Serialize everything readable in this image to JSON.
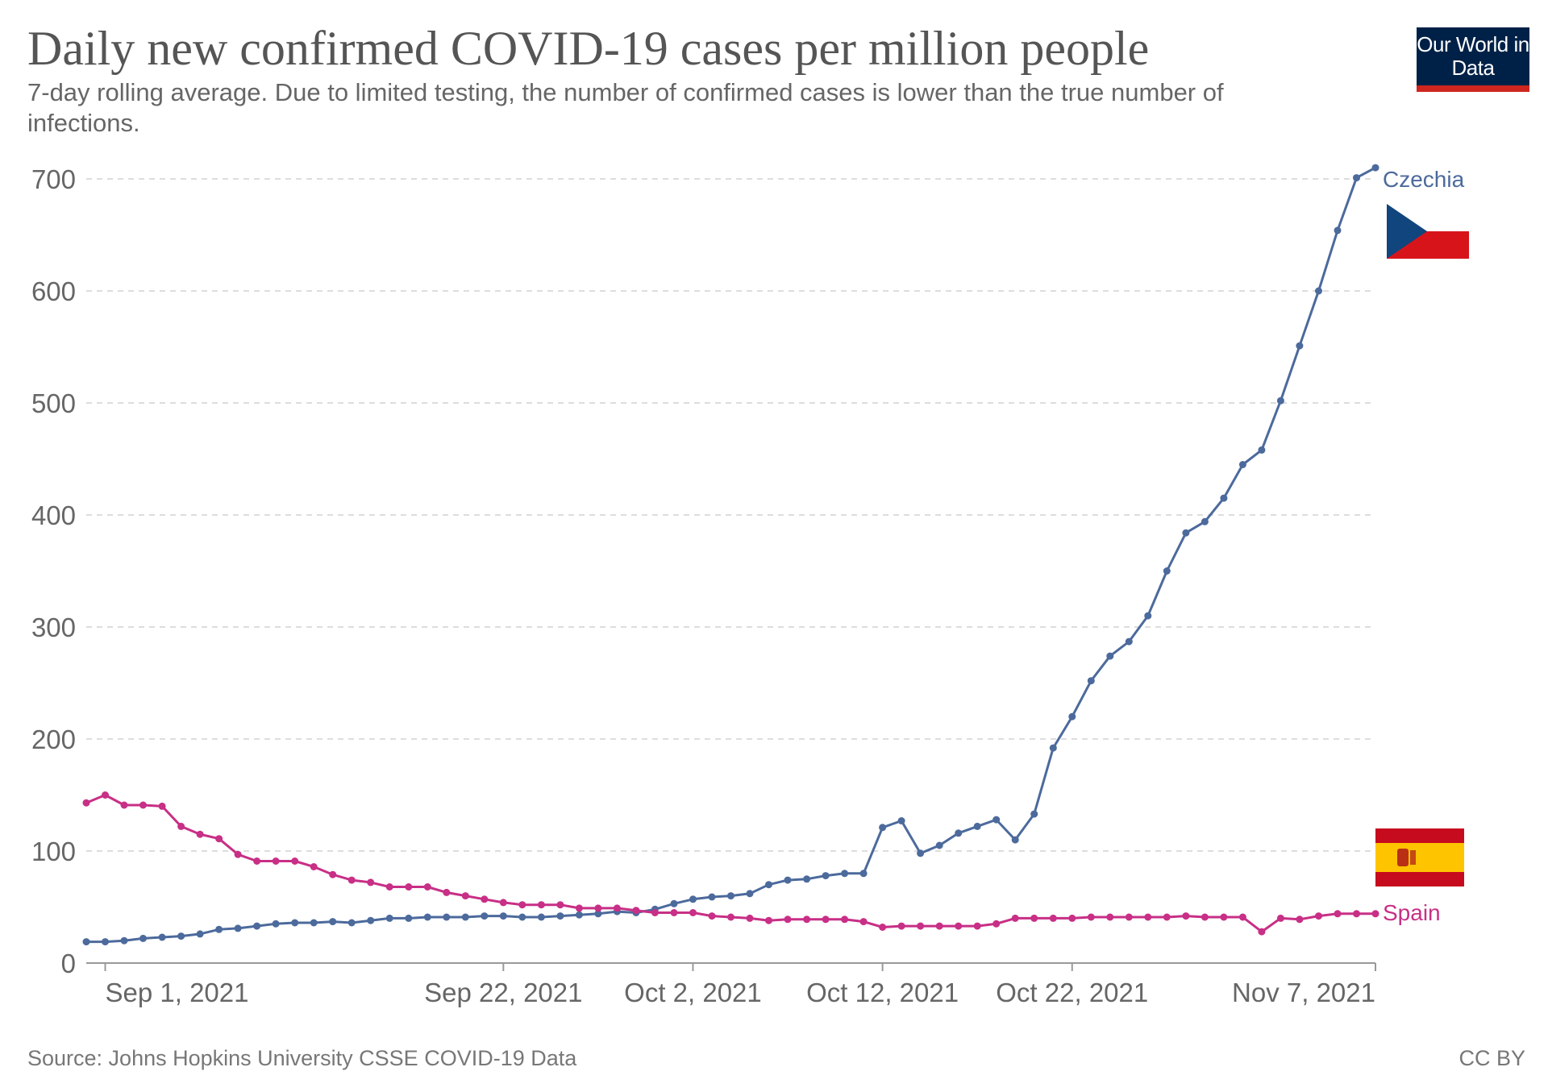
{
  "header": {
    "title": "Daily new confirmed COVID-19 cases per million people",
    "subtitle": "7-day rolling average. Due to limited testing, the number of confirmed cases is lower than the true number of infections.",
    "logo": "Our World in Data"
  },
  "footer": {
    "source": "Source: Johns Hopkins University CSSE COVID-19 Data",
    "license": "CC BY"
  },
  "colors": {
    "czechia": "#4c6a9c",
    "spain": "#c82f86",
    "grid": "#dddddd",
    "axis": "#999999"
  },
  "chart_data": {
    "type": "line",
    "title": "Daily new confirmed COVID-19 cases per million people",
    "subtitle": "7-day rolling average. Due to limited testing, the number of confirmed cases is lower than the true number of infections.",
    "x_start": "2021-08-31",
    "x_end": "2021-11-07",
    "x_ticks": [
      {
        "date": "2021-09-01",
        "label": "Sep 1, 2021"
      },
      {
        "date": "2021-09-22",
        "label": "Sep 22, 2021"
      },
      {
        "date": "2021-10-02",
        "label": "Oct 2, 2021"
      },
      {
        "date": "2021-10-12",
        "label": "Oct 12, 2021"
      },
      {
        "date": "2021-10-22",
        "label": "Oct 22, 2021"
      },
      {
        "date": "2021-11-07",
        "label": "Nov 7, 2021"
      }
    ],
    "y_ticks": [
      0,
      100,
      200,
      300,
      400,
      500,
      600,
      700
    ],
    "ylim": [
      0,
      700
    ],
    "grid": true,
    "legend": "inline labels at line ends with country flags",
    "series": [
      {
        "name": "Czechia",
        "values": [
          19,
          19,
          20,
          22,
          23,
          24,
          26,
          30,
          31,
          33,
          35,
          36,
          36,
          37,
          36,
          38,
          40,
          40,
          41,
          41,
          41,
          42,
          42,
          41,
          41,
          42,
          43,
          44,
          46,
          45,
          48,
          53,
          57,
          59,
          60,
          62,
          70,
          74,
          75,
          78,
          80,
          80,
          121,
          127,
          98,
          105,
          116,
          122,
          128,
          110,
          133,
          192,
          220,
          252,
          274,
          287,
          310,
          350,
          384,
          394,
          415,
          445,
          458,
          502,
          551,
          600,
          654,
          701,
          710
        ]
      },
      {
        "name": "Spain",
        "values": [
          143,
          150,
          141,
          141,
          140,
          122,
          115,
          111,
          97,
          91,
          91,
          91,
          86,
          79,
          74,
          72,
          68,
          68,
          68,
          63,
          60,
          57,
          54,
          52,
          52,
          52,
          49,
          49,
          49,
          47,
          45,
          45,
          45,
          42,
          41,
          40,
          38,
          39,
          39,
          39,
          39,
          37,
          32,
          33,
          33,
          33,
          33,
          33,
          35,
          40,
          40,
          40,
          40,
          41,
          41,
          41,
          41,
          41,
          42,
          41,
          41,
          41,
          28,
          40,
          39,
          42,
          44,
          44,
          44
        ]
      }
    ]
  }
}
